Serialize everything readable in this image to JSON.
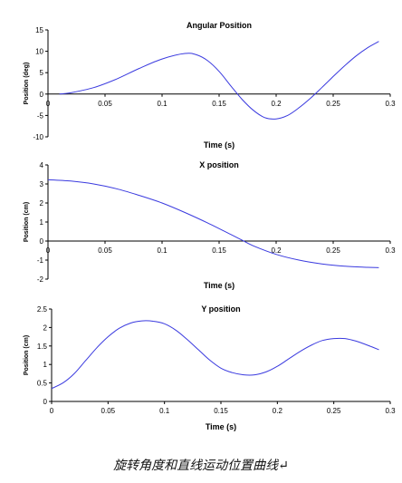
{
  "caption": "旋转角度和直线运动位置曲线↵",
  "chart_data": [
    {
      "type": "line",
      "title": "Angular Position",
      "xlabel": "Time (s)",
      "ylabel": "Position (deg)",
      "xlim": [
        0,
        0.3
      ],
      "ylim": [
        -10,
        15
      ],
      "xticks": [
        0,
        0.05,
        0.1,
        0.15,
        0.2,
        0.25,
        0.3
      ],
      "xtick_labels": [
        "0",
        "0.05",
        "0.1",
        "0.15",
        "0.2",
        "0.25",
        "0.3"
      ],
      "yticks": [
        -10,
        -5,
        0,
        5,
        10,
        15
      ],
      "ytick_labels": [
        "-10",
        "-5",
        "0",
        "5",
        "10",
        "15"
      ],
      "color": "#3a3adf",
      "x": [
        0.01,
        0.02,
        0.04,
        0.06,
        0.08,
        0.1,
        0.12,
        0.13,
        0.14,
        0.15,
        0.16,
        0.17,
        0.18,
        0.19,
        0.2,
        0.21,
        0.22,
        0.23,
        0.24,
        0.25,
        0.26,
        0.27,
        0.28,
        0.29
      ],
      "y": [
        0,
        0.3,
        1.5,
        3.5,
        6.0,
        8.2,
        9.5,
        9.2,
        7.8,
        5.3,
        2.0,
        -1.2,
        -3.8,
        -5.5,
        -5.8,
        -5.0,
        -3.2,
        -1.0,
        1.5,
        4.1,
        6.6,
        8.9,
        10.8,
        12.3
      ]
    },
    {
      "type": "line",
      "title": "X position",
      "xlabel": "Time (s)",
      "ylabel": "Position (cm)",
      "xlim": [
        0,
        0.3
      ],
      "ylim": [
        -2,
        4
      ],
      "xticks": [
        0,
        0.05,
        0.1,
        0.15,
        0.2,
        0.25,
        0.3
      ],
      "xtick_labels": [
        "0",
        "0.05",
        "0.1",
        "0.15",
        "0.2",
        "0.25",
        "0.3"
      ],
      "yticks": [
        -2,
        -1,
        0,
        1,
        2,
        3,
        4
      ],
      "ytick_labels": [
        "-2",
        "-1",
        "0",
        "1",
        "2",
        "3",
        "4"
      ],
      "color": "#3a3adf",
      "x": [
        0,
        0.02,
        0.04,
        0.06,
        0.08,
        0.1,
        0.12,
        0.14,
        0.16,
        0.17,
        0.18,
        0.2,
        0.22,
        0.24,
        0.26,
        0.28,
        0.29
      ],
      "y": [
        3.22,
        3.15,
        3.0,
        2.75,
        2.4,
        2.0,
        1.5,
        0.95,
        0.35,
        0.05,
        -0.25,
        -0.7,
        -1.0,
        -1.2,
        -1.32,
        -1.38,
        -1.4
      ]
    },
    {
      "type": "line",
      "title": "Y position",
      "xlabel": "Time (s)",
      "ylabel": "Position (cm)",
      "xlim": [
        0,
        0.3
      ],
      "ylim": [
        0,
        2.5
      ],
      "xticks": [
        0,
        0.05,
        0.1,
        0.15,
        0.2,
        0.25,
        0.3
      ],
      "xtick_labels": [
        "0",
        "0.05",
        "0.1",
        "0.15",
        "0.2",
        "0.25",
        "0.3"
      ],
      "yticks": [
        0,
        0.5,
        1,
        1.5,
        2,
        2.5
      ],
      "ytick_labels": [
        "0",
        "0.5",
        "1",
        "1.5",
        "2",
        "2.5"
      ],
      "color": "#3a3adf",
      "x": [
        0,
        0.01,
        0.02,
        0.03,
        0.04,
        0.05,
        0.06,
        0.07,
        0.08,
        0.09,
        0.1,
        0.11,
        0.12,
        0.13,
        0.14,
        0.15,
        0.16,
        0.17,
        0.18,
        0.19,
        0.2,
        0.21,
        0.22,
        0.23,
        0.24,
        0.25,
        0.26,
        0.27,
        0.28,
        0.29
      ],
      "y": [
        0.35,
        0.5,
        0.75,
        1.1,
        1.45,
        1.75,
        1.98,
        2.12,
        2.18,
        2.17,
        2.1,
        1.93,
        1.68,
        1.4,
        1.12,
        0.9,
        0.78,
        0.72,
        0.72,
        0.8,
        0.95,
        1.15,
        1.35,
        1.52,
        1.65,
        1.7,
        1.7,
        1.63,
        1.52,
        1.4
      ]
    }
  ]
}
